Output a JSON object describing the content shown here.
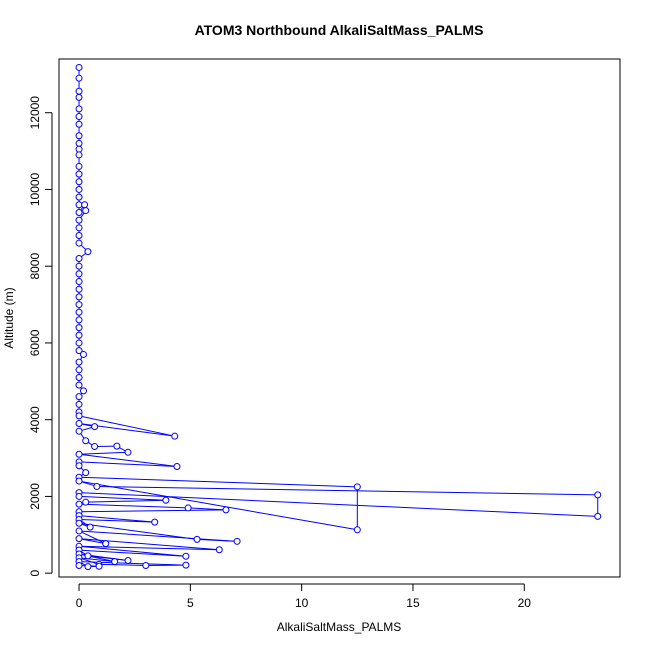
{
  "chart_data": {
    "type": "scatter",
    "title": "ATOM3 Northbound AlkaliSaltMass_PALMS",
    "xlabel": "AlkaliSaltMass_PALMS",
    "ylabel": "Altitude (m)",
    "xlim": [
      -0.9,
      24.3
    ],
    "ylim": [
      -100,
      13400
    ],
    "xticks": [
      0,
      5,
      10,
      15,
      20
    ],
    "yticks": [
      0,
      2000,
      4000,
      6000,
      8000,
      10000,
      12000
    ],
    "grid": false,
    "legend": "none",
    "series_color": "#0000ff",
    "marker": "open-circle",
    "connected": true,
    "series": [
      {
        "points": [
          [
            0.0,
            13180
          ],
          [
            0.0,
            12900
          ],
          [
            0.0,
            12560
          ],
          [
            0.0,
            12400
          ],
          [
            0.0,
            12100
          ],
          [
            0.0,
            11900
          ],
          [
            0.0,
            11700
          ],
          [
            0.0,
            11400
          ],
          [
            0.0,
            11200
          ],
          [
            0.0,
            11050
          ],
          [
            0.0,
            10900
          ],
          [
            0.0,
            10600
          ],
          [
            0.0,
            10400
          ],
          [
            0.0,
            10200
          ],
          [
            0.0,
            10000
          ],
          [
            0.0,
            9800
          ],
          [
            0.0,
            9600
          ],
          [
            0.0,
            9400
          ],
          [
            0.25,
            9600
          ],
          [
            0.3,
            9450
          ],
          [
            0.0,
            9200
          ],
          [
            0.0,
            9000
          ],
          [
            0.0,
            8800
          ],
          [
            0.0,
            8600
          ],
          [
            0.4,
            8380
          ],
          [
            0.0,
            8200
          ],
          [
            0.0,
            8000
          ],
          [
            0.0,
            7800
          ],
          [
            0.0,
            7600
          ],
          [
            0.0,
            7400
          ],
          [
            0.0,
            7200
          ],
          [
            0.0,
            7000
          ],
          [
            0.0,
            6800
          ],
          [
            0.0,
            6600
          ],
          [
            0.0,
            6400
          ],
          [
            0.0,
            6200
          ],
          [
            0.0,
            6000
          ],
          [
            0.0,
            5800
          ],
          [
            0.2,
            5700
          ],
          [
            0.0,
            5500
          ],
          [
            0.0,
            5300
          ],
          [
            0.0,
            5100
          ],
          [
            0.0,
            4900
          ],
          [
            0.2,
            4750
          ],
          [
            0.0,
            4600
          ],
          [
            0.0,
            4400
          ],
          [
            0.0,
            4200
          ],
          [
            0.0,
            4100
          ],
          [
            4.3,
            3570
          ],
          [
            0.0,
            3900
          ],
          [
            0.7,
            3820
          ],
          [
            0.0,
            3700
          ],
          [
            0.3,
            3450
          ],
          [
            0.7,
            3300
          ],
          [
            1.7,
            3310
          ],
          [
            2.2,
            3150
          ],
          [
            0.0,
            3100
          ],
          [
            4.4,
            2780
          ],
          [
            0.0,
            2900
          ],
          [
            0.0,
            2800
          ],
          [
            0.3,
            2620
          ],
          [
            0.0,
            2500
          ],
          [
            12.5,
            2250
          ],
          [
            12.5,
            1130
          ],
          [
            0.0,
            2400
          ],
          [
            0.8,
            2260
          ],
          [
            23.3,
            2040
          ],
          [
            23.3,
            1480
          ],
          [
            0.0,
            2100
          ],
          [
            0.0,
            2000
          ],
          [
            3.9,
            1900
          ],
          [
            0.3,
            1850
          ],
          [
            0.0,
            1800
          ],
          [
            4.9,
            1700
          ],
          [
            6.6,
            1650
          ],
          [
            0.0,
            1600
          ],
          [
            0.0,
            1500
          ],
          [
            3.4,
            1330
          ],
          [
            0.0,
            1400
          ],
          [
            0.5,
            1200
          ],
          [
            0.0,
            1300
          ],
          [
            5.3,
            880
          ],
          [
            7.1,
            830
          ],
          [
            0.0,
            1100
          ],
          [
            1.2,
            770
          ],
          [
            0.0,
            900
          ],
          [
            6.3,
            610
          ],
          [
            0.0,
            700
          ],
          [
            4.8,
            440
          ],
          [
            0.0,
            600
          ],
          [
            0.4,
            450
          ],
          [
            2.2,
            330
          ],
          [
            0.0,
            500
          ],
          [
            1.6,
            300
          ],
          [
            0.0,
            400
          ],
          [
            0.9,
            230
          ],
          [
            3.0,
            200
          ],
          [
            4.8,
            210
          ],
          [
            0.0,
            300
          ],
          [
            0.4,
            170
          ],
          [
            0.9,
            180
          ],
          [
            0.0,
            200
          ]
        ]
      }
    ]
  }
}
